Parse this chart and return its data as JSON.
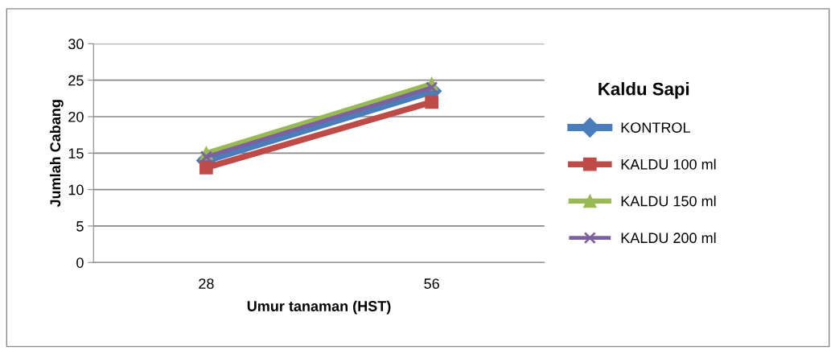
{
  "chart_data": {
    "type": "line",
    "xlabel": "Umur tanaman (HST)",
    "ylabel": "Jumlah Cabang",
    "legend_title": "Kaldu Sapi",
    "categories": [
      "28",
      "56"
    ],
    "series": [
      {
        "name": "KONTROL",
        "color": "#4a7ebb",
        "marker": "diamond",
        "values": [
          14,
          23.5
        ]
      },
      {
        "name": "KALDU 100 ml",
        "color": "#be4b48",
        "marker": "square",
        "values": [
          13,
          22
        ]
      },
      {
        "name": "KALDU 150 ml",
        "color": "#98b954",
        "marker": "triangle",
        "values": [
          15,
          24.5
        ]
      },
      {
        "name": "KALDU 200 ml",
        "color": "#7d60a0",
        "marker": "cross",
        "values": [
          14.5,
          24
        ]
      }
    ],
    "ylim": [
      0,
      30
    ],
    "yticks": [
      0,
      5,
      10,
      15,
      20,
      25,
      30
    ],
    "grid": "y",
    "legend": "right",
    "line_style": "solid"
  }
}
